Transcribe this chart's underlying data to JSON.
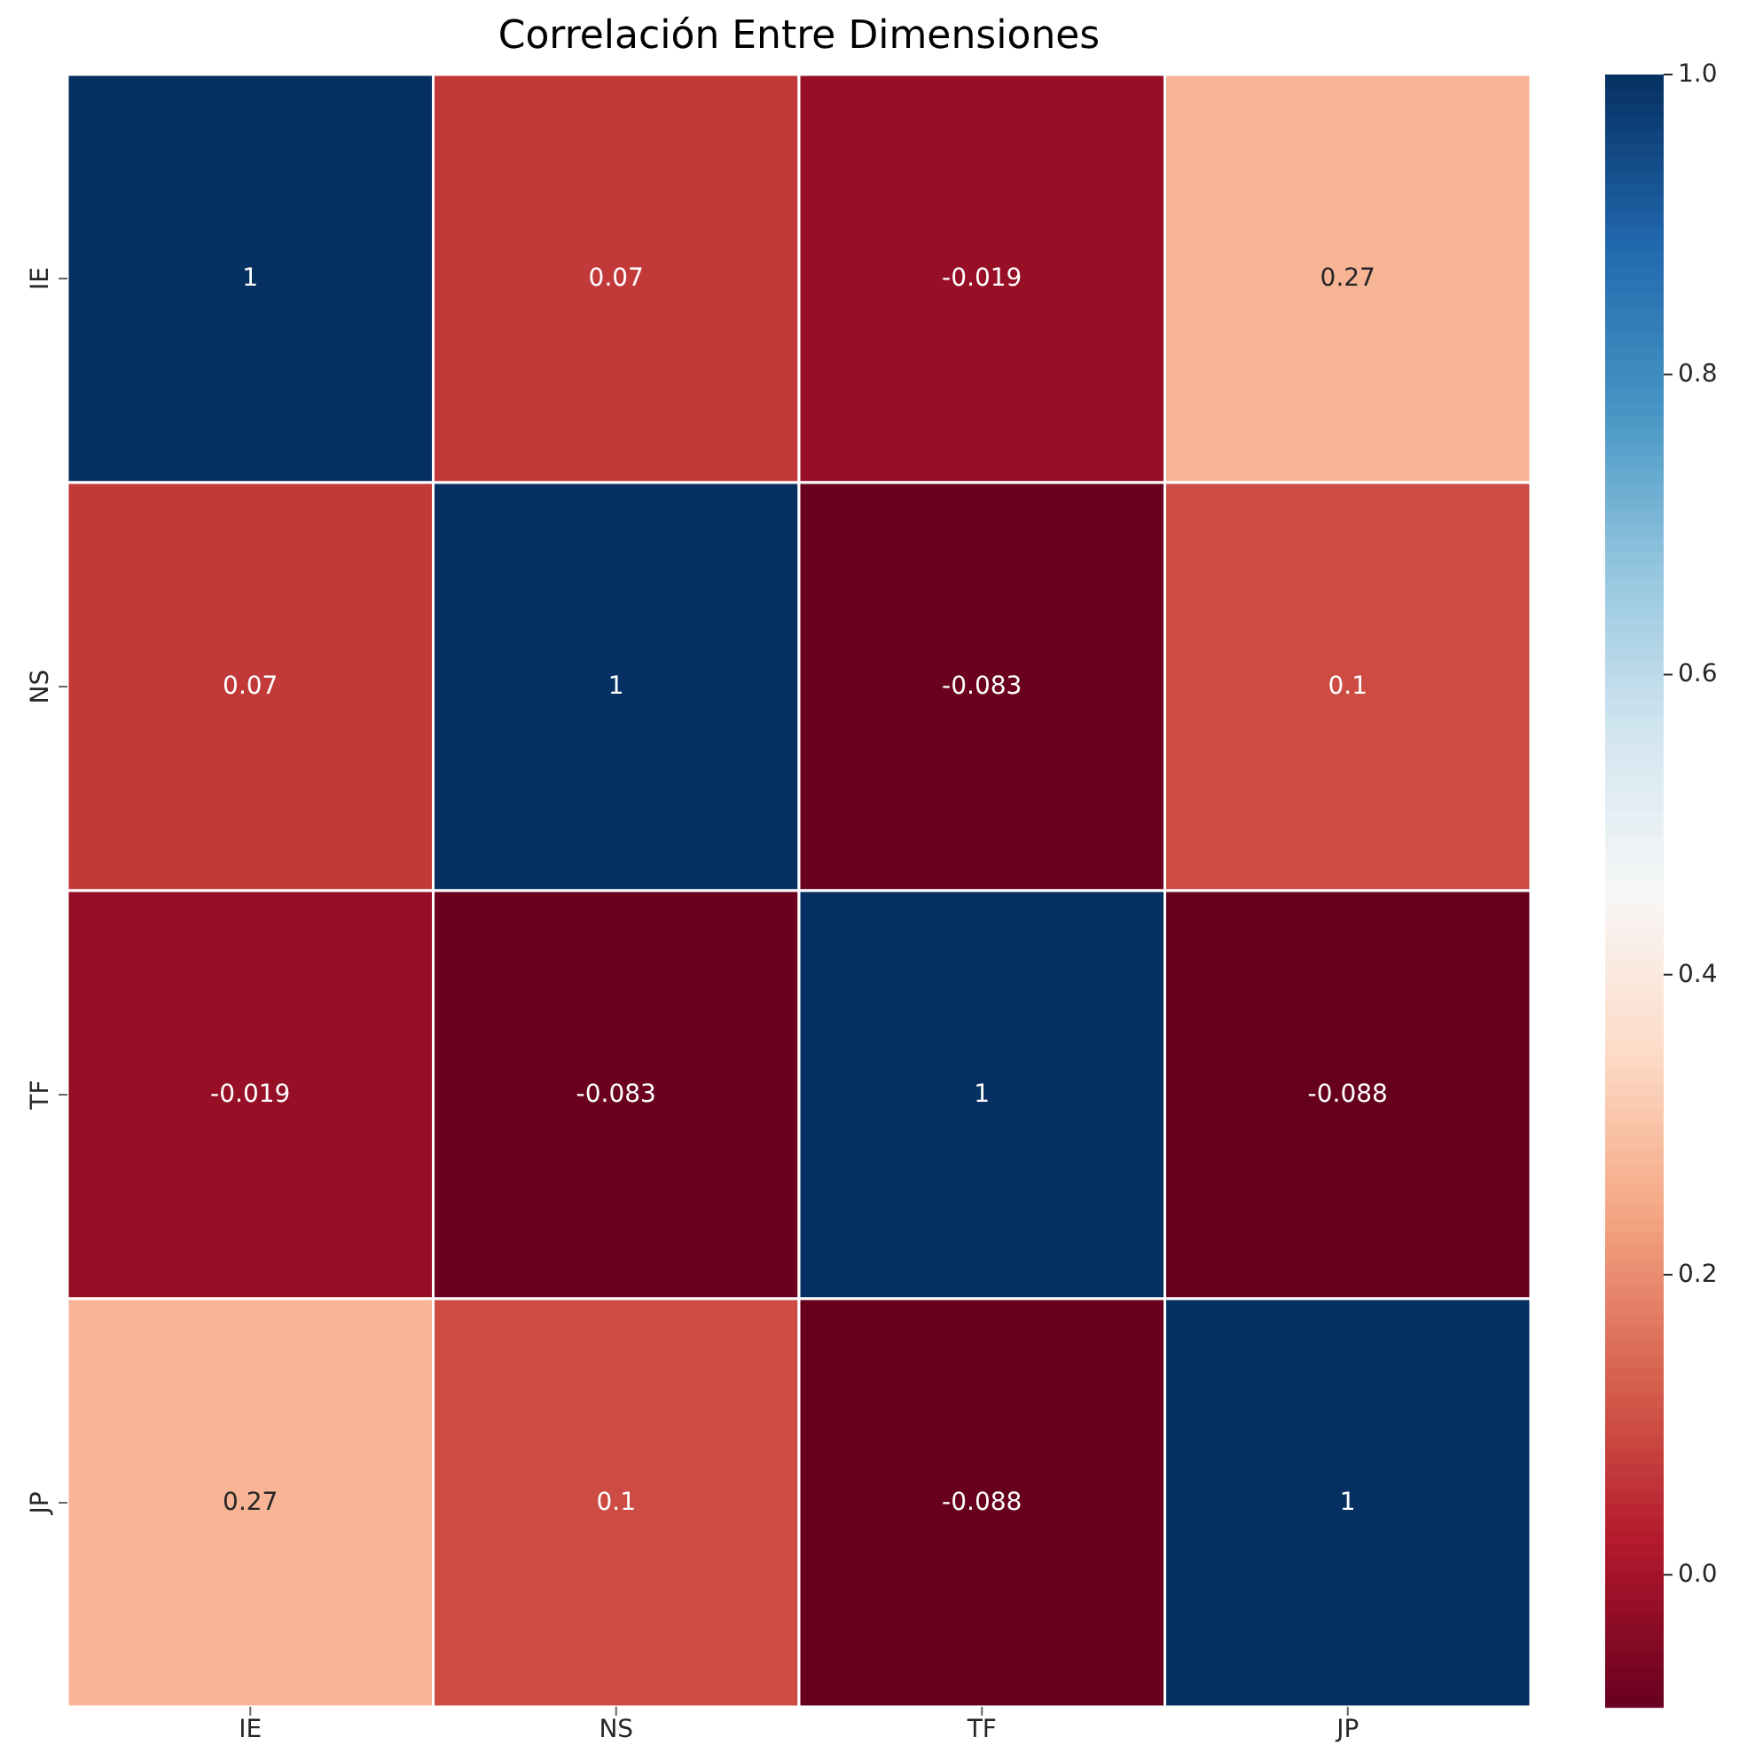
{
  "chart_data": {
    "type": "heatmap",
    "title": "Correlación Entre Dimensiones",
    "categories": [
      "IE",
      "NS",
      "TF",
      "JP"
    ],
    "y_categories": [
      "IE",
      "NS",
      "TF",
      "JP"
    ],
    "cells": [
      [
        1,
        0.07,
        -0.019,
        0.27
      ],
      [
        0.07,
        1,
        -0.083,
        0.1
      ],
      [
        -0.019,
        -0.083,
        1,
        -0.088
      ],
      [
        0.27,
        0.1,
        -0.088,
        1
      ]
    ],
    "data_labels": true,
    "clim": [
      -0.088,
      1
    ],
    "cticks": [
      {
        "value": 0,
        "label": "0.0"
      },
      {
        "value": 0.2,
        "label": "0.2"
      },
      {
        "value": 0.4,
        "label": "0.4"
      },
      {
        "value": 0.6,
        "label": "0.6"
      },
      {
        "value": 0.8,
        "label": "0.8"
      },
      {
        "value": 1,
        "label": "1.0"
      }
    ]
  }
}
